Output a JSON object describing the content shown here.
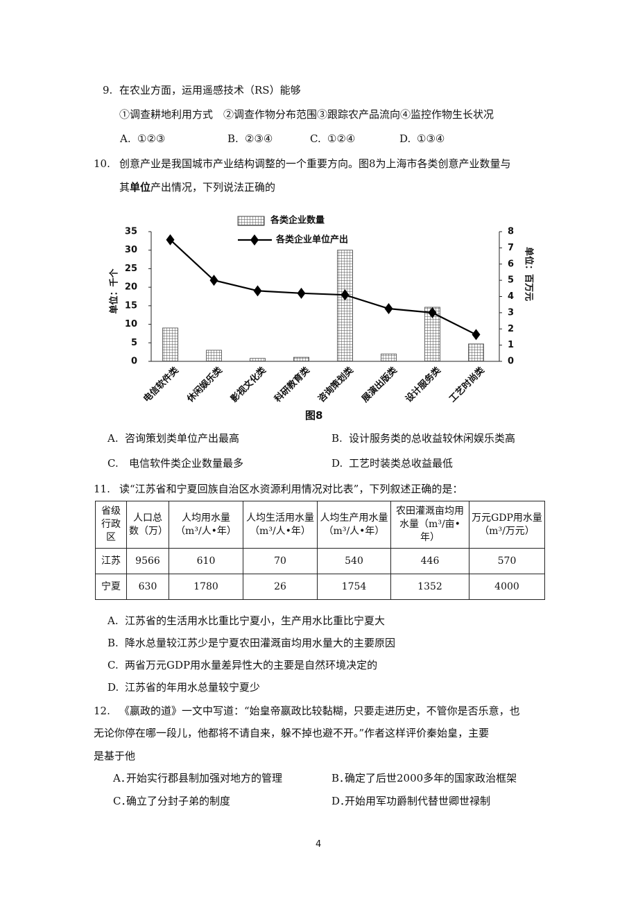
{
  "q9": {
    "number": "9.",
    "stem": "在农业方面，运用遥感技术（RS）能够",
    "items": "①调查耕地利用方式　②调查作物分布范围③跟踪农产品流向④监控作物生长状况",
    "options": [
      {
        "label": "A.",
        "text": "①②③"
      },
      {
        "label": "B.",
        "text": "②③④"
      },
      {
        "label": "C.",
        "text": "①②④"
      },
      {
        "label": "D.",
        "text": "①③④"
      }
    ]
  },
  "q10": {
    "number": "10.",
    "stem_line1": "创意产业是我国城市产业结构调整的一个重要方向。图8为上海市各类创意产业数量与",
    "stem_line2": [
      "其",
      "单位",
      "产出情况，下列说法正确的"
    ],
    "figure_caption": "图8",
    "options": [
      {
        "label": "A.",
        "text": "咨询策划类单位产出最高"
      },
      {
        "label": "B.",
        "text": "设计服务类的总收益较休闲娱乐类高"
      },
      {
        "label": "C.",
        "text": "电信软件类企业数量最多"
      },
      {
        "label": "D.",
        "text": "工艺时装类总收益最低"
      }
    ]
  },
  "chart_data": {
    "type": "bar",
    "y_label": "单位：千个",
    "y2_label": "单位：百万元",
    "categories": [
      "电信软件类",
      "休闲娱乐类",
      "影视文化类",
      "科研教育类",
      "咨询策划类",
      "展演出版类",
      "设计服务类",
      "工艺时尚类"
    ],
    "series": [
      {
        "name": "各类企业数量",
        "type": "bar",
        "color": "#444444",
        "values": [
          9,
          3,
          0.8,
          1.1,
          30,
          2,
          14.6,
          4.7
        ]
      },
      {
        "name": "各类企业单位产出",
        "type": "line",
        "axis": "y2",
        "color": "#000000",
        "values": [
          7.5,
          5,
          4.35,
          4.2,
          4.1,
          3.25,
          3,
          1.65
        ]
      }
    ],
    "ylim": [
      0,
      35
    ],
    "yticks": [
      0,
      5,
      10,
      15,
      20,
      25,
      30,
      35
    ],
    "y2lim": [
      0,
      8
    ],
    "y2ticks": [
      0,
      1,
      2,
      3,
      4,
      5,
      6,
      7,
      8
    ],
    "grid": false
  },
  "q11": {
    "number": "11.",
    "stem": "读“江苏省和宁夏回族自治区水资源利用情况对比表”，下列叙述正确的是：",
    "table": {
      "header": [
        "省级行政区",
        "人口总数（万）",
        "人均用水量（m³/人•年）",
        "人均生活用水量（m³/人•年）",
        "人均生产用水量（m³/人•年）",
        "农田灌溉亩均用水量（m³/亩•年）",
        "万元GDP用水量（m³/万元）"
      ],
      "rows": [
        [
          "江苏",
          9566,
          610,
          70,
          540,
          446,
          570
        ],
        [
          "宁夏",
          630,
          1780,
          26,
          1754,
          1352,
          4000
        ]
      ]
    },
    "options": [
      {
        "label": "A.",
        "text": "江苏省的生活用水比重比宁夏小，生产用水比重比宁夏大"
      },
      {
        "label": "B.",
        "text": "降水总量较江苏少是宁夏农田灌溉亩均用水量大的主要原因"
      },
      {
        "label": "C.",
        "text": "两省万元GDP用水量差异性大的主要是自然环境决定的"
      },
      {
        "label": "D.",
        "text": "江苏省的年用水总量较宁夏少"
      }
    ]
  },
  "q12": {
    "number": "12.",
    "stem": [
      "《嬴政的道》一文中写道：“始皇帝嬴政比较黏糊，只要走进历史，不管你是否乐意，也",
      "无论你停在哪一段儿，他都将不请自来，躲不掉也避不开。”作者这样评价秦始皇，主要",
      "是基于他"
    ],
    "options": [
      {
        "label": "A．",
        "text": "开始实行郡县制加强对地方的管理"
      },
      {
        "label": "B．",
        "text": "确定了后世2000多年的国家政治框架"
      },
      {
        "label": "C．",
        "text": "确立了分封子弟的制度"
      },
      {
        "label": "D．",
        "text": "开始用军功爵制代替世卿世禄制"
      }
    ]
  },
  "page_number": "4"
}
